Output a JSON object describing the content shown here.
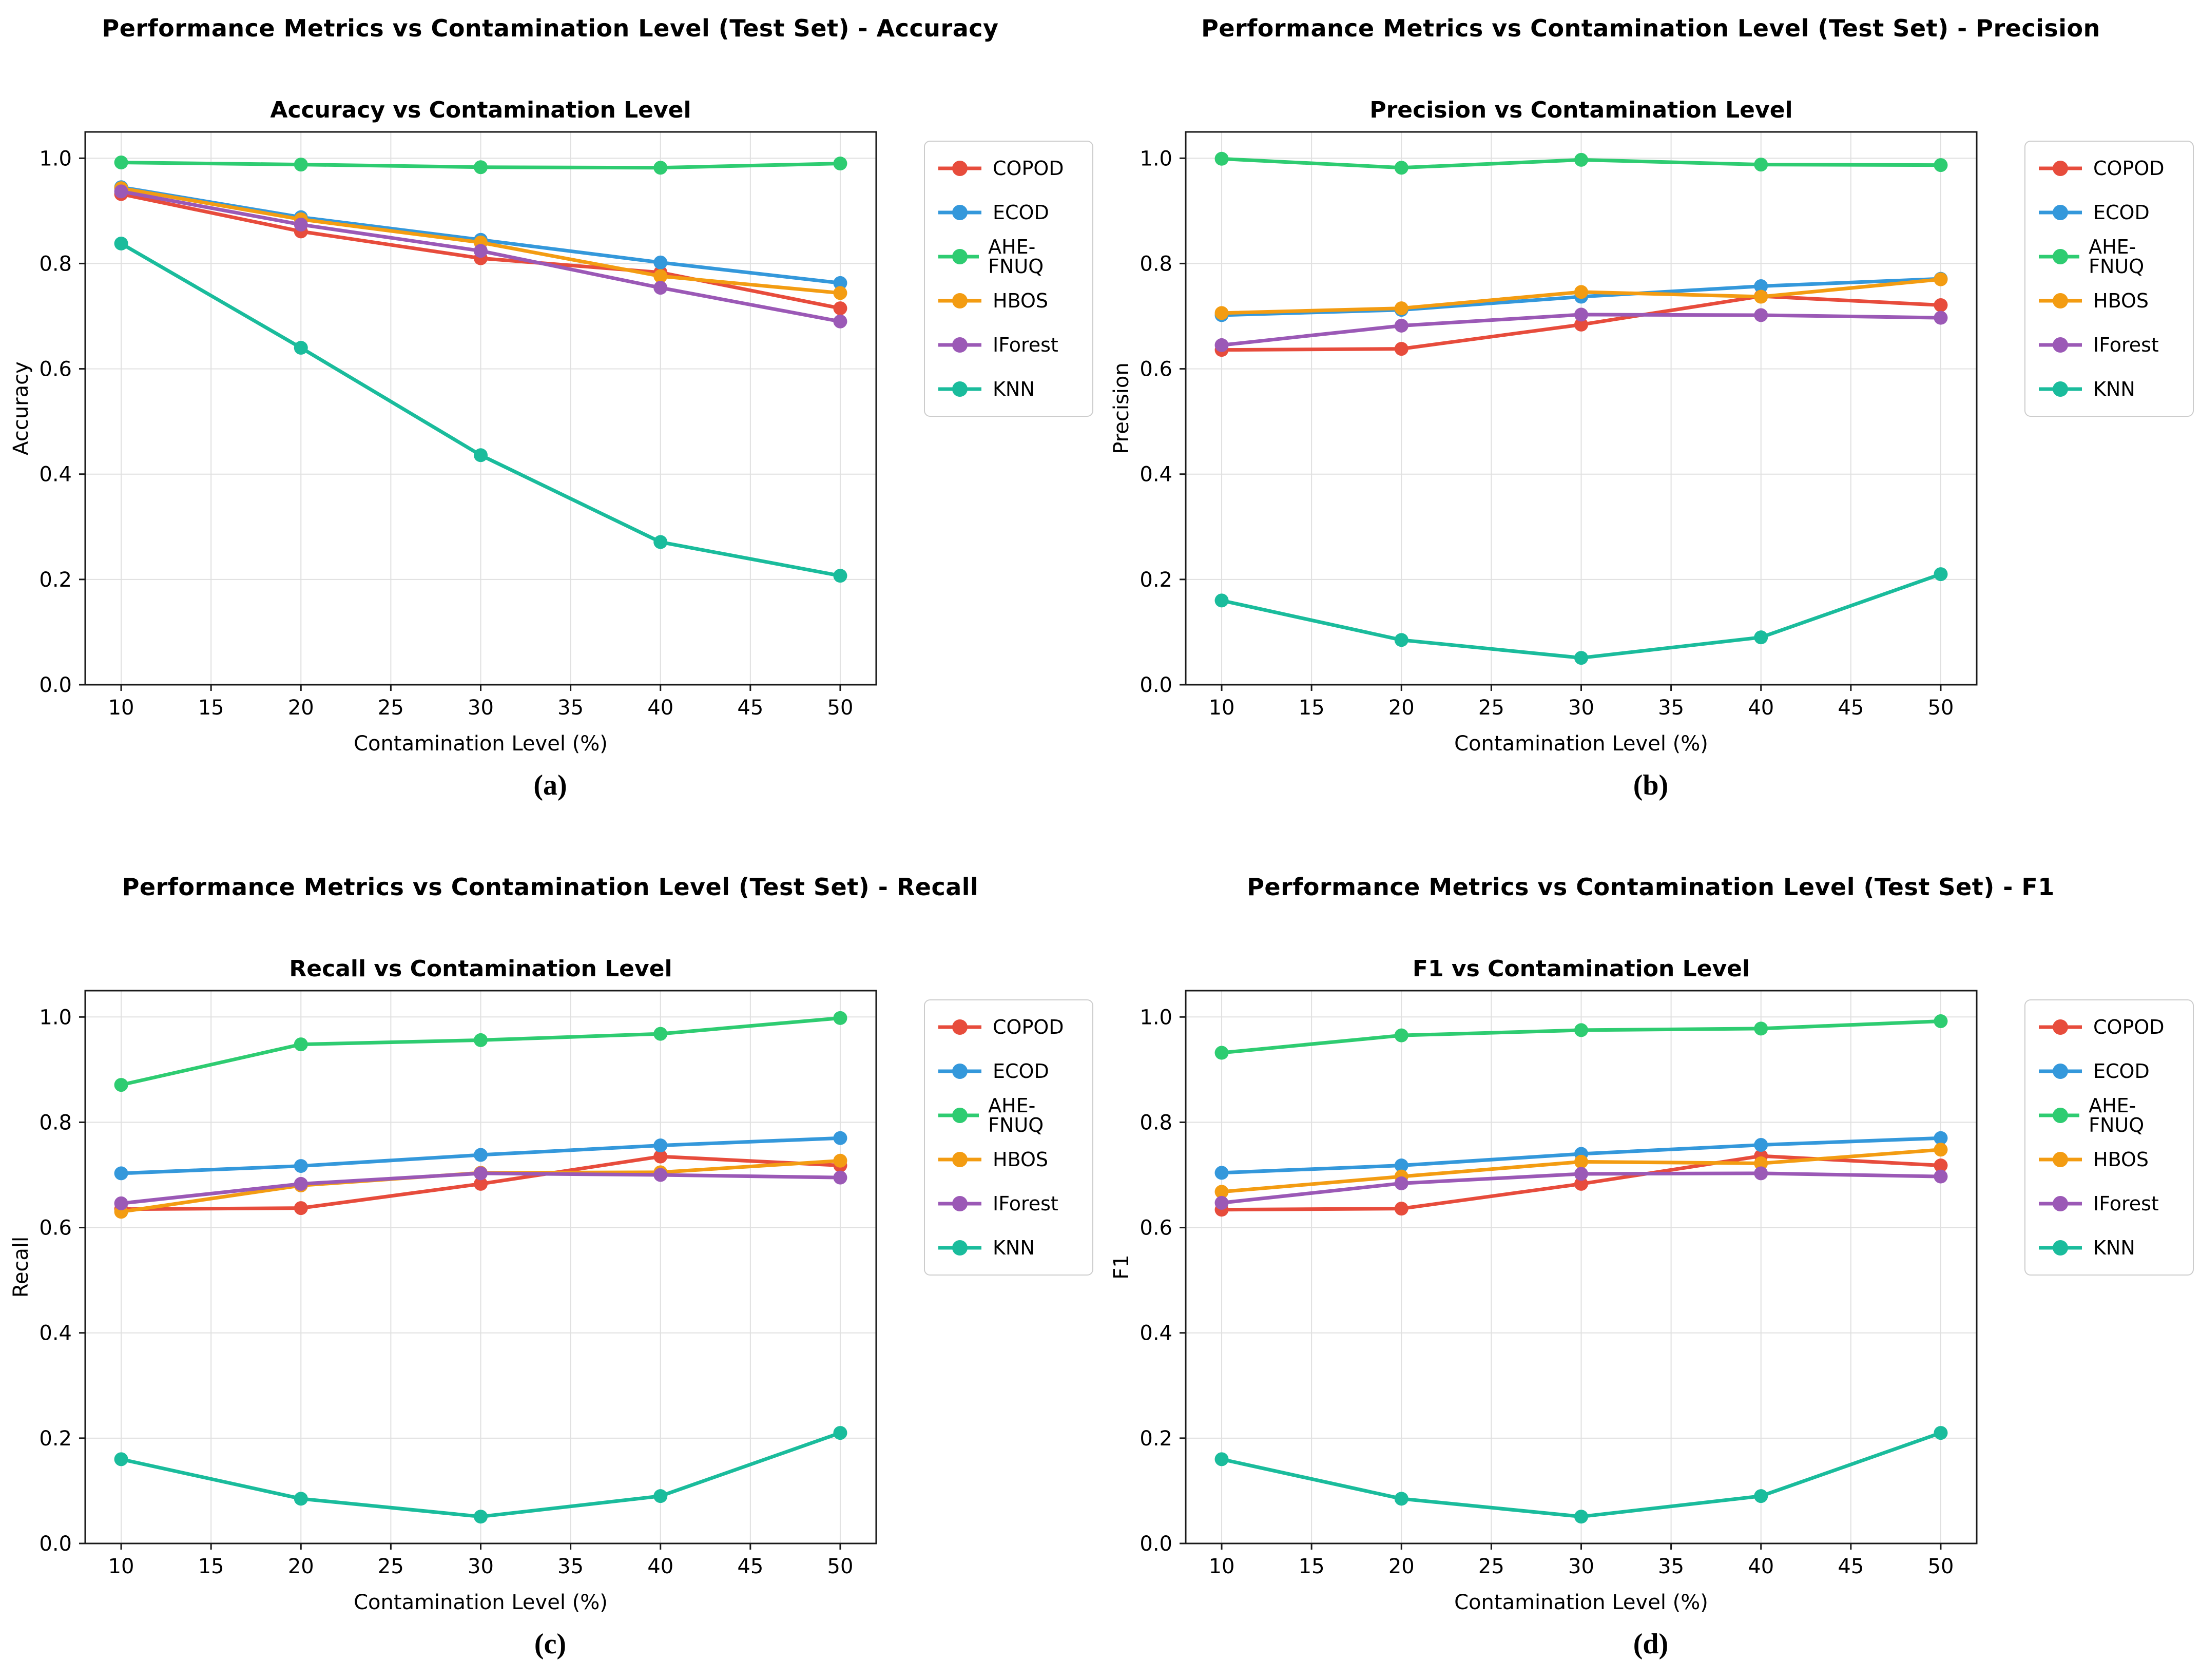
{
  "figure": {
    "xlabel": "Contamination Level (%)",
    "x_points": [
      10,
      20,
      30,
      40,
      50
    ],
    "xticks": [
      10,
      15,
      20,
      25,
      30,
      35,
      40,
      45,
      50
    ],
    "yticks": [
      0.0,
      0.2,
      0.4,
      0.6,
      0.8,
      1.0
    ],
    "colors": {
      "COPOD": "#e74c3c",
      "ECOD": "#3498db",
      "AHE-FNUQ": "#2ecc71",
      "HBOS": "#f39c12",
      "IForest": "#9b59b6",
      "KNN": "#1abc9c",
      "grid": "#e0e0e0",
      "spine": "#1a1a1a"
    }
  },
  "panels": [
    {
      "suptitle": "Performance Metrics vs Contamination Level (Test Set) - Accuracy",
      "caption": "(a)"
    },
    {
      "suptitle": "Performance Metrics vs Contamination Level (Test Set) - Precision",
      "caption": "(b)"
    },
    {
      "suptitle": "Performance Metrics vs Contamination Level (Test Set) - Recall",
      "caption": "(c)"
    },
    {
      "suptitle": "Performance Metrics vs Contamination Level (Test Set) - F1",
      "caption": "(d)"
    }
  ],
  "chart_data": [
    {
      "type": "line",
      "title": "Accuracy vs Contamination Level",
      "xlabel": "Contamination Level (%)",
      "ylabel": "Accuracy",
      "x": [
        10,
        20,
        30,
        40,
        50
      ],
      "xticks": [
        10,
        15,
        20,
        25,
        30,
        35,
        40,
        45,
        50
      ],
      "yticks": [
        0.0,
        0.2,
        0.4,
        0.6,
        0.8,
        1.0
      ],
      "xlim": [
        8,
        52
      ],
      "ylim": [
        0,
        1.05
      ],
      "grid": true,
      "legend_position": "right",
      "series": [
        {
          "name": "COPOD",
          "color": "#e74c3c",
          "values": [
            0.932,
            0.861,
            0.81,
            0.783,
            0.715
          ]
        },
        {
          "name": "ECOD",
          "color": "#3498db",
          "values": [
            0.945,
            0.888,
            0.845,
            0.802,
            0.763
          ]
        },
        {
          "name": "AHE-FNUQ",
          "color": "#2ecc71",
          "values": [
            0.992,
            0.988,
            0.983,
            0.982,
            0.99
          ]
        },
        {
          "name": "HBOS",
          "color": "#f39c12",
          "values": [
            0.943,
            0.884,
            0.84,
            0.776,
            0.744
          ]
        },
        {
          "name": "IForest",
          "color": "#9b59b6",
          "values": [
            0.937,
            0.874,
            0.824,
            0.754,
            0.69
          ]
        },
        {
          "name": "KNN",
          "color": "#1abc9c",
          "values": [
            0.838,
            0.64,
            0.436,
            0.271,
            0.207
          ]
        }
      ]
    },
    {
      "type": "line",
      "title": "Precision vs Contamination Level",
      "xlabel": "Contamination Level (%)",
      "ylabel": "Precision",
      "x": [
        10,
        20,
        30,
        40,
        50
      ],
      "xticks": [
        10,
        15,
        20,
        25,
        30,
        35,
        40,
        45,
        50
      ],
      "yticks": [
        0.0,
        0.2,
        0.4,
        0.6,
        0.8,
        1.0
      ],
      "xlim": [
        8,
        52
      ],
      "ylim": [
        0,
        1.05
      ],
      "grid": true,
      "legend_position": "right",
      "series": [
        {
          "name": "COPOD",
          "color": "#e74c3c",
          "values": [
            0.636,
            0.638,
            0.684,
            0.738,
            0.721
          ]
        },
        {
          "name": "ECOD",
          "color": "#3498db",
          "values": [
            0.702,
            0.712,
            0.737,
            0.757,
            0.771
          ]
        },
        {
          "name": "AHE-FNUQ",
          "color": "#2ecc71",
          "values": [
            0.999,
            0.982,
            0.997,
            0.988,
            0.987
          ]
        },
        {
          "name": "HBOS",
          "color": "#f39c12",
          "values": [
            0.706,
            0.715,
            0.746,
            0.737,
            0.77
          ]
        },
        {
          "name": "IForest",
          "color": "#9b59b6",
          "values": [
            0.645,
            0.682,
            0.703,
            0.702,
            0.697
          ]
        },
        {
          "name": "KNN",
          "color": "#1abc9c",
          "values": [
            0.16,
            0.085,
            0.051,
            0.09,
            0.21
          ]
        }
      ]
    },
    {
      "type": "line",
      "title": "Recall vs Contamination Level",
      "xlabel": "Contamination Level (%)",
      "ylabel": "Recall",
      "x": [
        10,
        20,
        30,
        40,
        50
      ],
      "xticks": [
        10,
        15,
        20,
        25,
        30,
        35,
        40,
        45,
        50
      ],
      "yticks": [
        0.0,
        0.2,
        0.4,
        0.6,
        0.8,
        1.0
      ],
      "xlim": [
        8,
        52
      ],
      "ylim": [
        0,
        1.05
      ],
      "grid": true,
      "legend_position": "right",
      "series": [
        {
          "name": "COPOD",
          "color": "#e74c3c",
          "values": [
            0.635,
            0.637,
            0.683,
            0.735,
            0.718
          ]
        },
        {
          "name": "ECOD",
          "color": "#3498db",
          "values": [
            0.703,
            0.717,
            0.738,
            0.756,
            0.77
          ]
        },
        {
          "name": "AHE-FNUQ",
          "color": "#2ecc71",
          "values": [
            0.871,
            0.948,
            0.956,
            0.968,
            0.998
          ]
        },
        {
          "name": "HBOS",
          "color": "#f39c12",
          "values": [
            0.63,
            0.68,
            0.704,
            0.705,
            0.727
          ]
        },
        {
          "name": "IForest",
          "color": "#9b59b6",
          "values": [
            0.646,
            0.683,
            0.703,
            0.7,
            0.695
          ]
        },
        {
          "name": "KNN",
          "color": "#1abc9c",
          "values": [
            0.16,
            0.085,
            0.051,
            0.09,
            0.21
          ]
        }
      ]
    },
    {
      "type": "line",
      "title": "F1 vs Contamination Level",
      "xlabel": "Contamination Level (%)",
      "ylabel": "F1",
      "x": [
        10,
        20,
        30,
        40,
        50
      ],
      "xticks": [
        10,
        15,
        20,
        25,
        30,
        35,
        40,
        45,
        50
      ],
      "yticks": [
        0.0,
        0.2,
        0.4,
        0.6,
        0.8,
        1.0
      ],
      "xlim": [
        8,
        52
      ],
      "ylim": [
        0,
        1.05
      ],
      "grid": true,
      "legend_position": "right",
      "series": [
        {
          "name": "COPOD",
          "color": "#e74c3c",
          "values": [
            0.634,
            0.636,
            0.683,
            0.736,
            0.718
          ]
        },
        {
          "name": "ECOD",
          "color": "#3498db",
          "values": [
            0.704,
            0.718,
            0.74,
            0.757,
            0.77
          ]
        },
        {
          "name": "AHE-FNUQ",
          "color": "#2ecc71",
          "values": [
            0.932,
            0.965,
            0.975,
            0.978,
            0.992
          ]
        },
        {
          "name": "HBOS",
          "color": "#f39c12",
          "values": [
            0.668,
            0.697,
            0.725,
            0.722,
            0.748
          ]
        },
        {
          "name": "IForest",
          "color": "#9b59b6",
          "values": [
            0.647,
            0.684,
            0.702,
            0.703,
            0.697
          ]
        },
        {
          "name": "KNN",
          "color": "#1abc9c",
          "values": [
            0.16,
            0.085,
            0.051,
            0.09,
            0.21
          ]
        }
      ]
    }
  ]
}
